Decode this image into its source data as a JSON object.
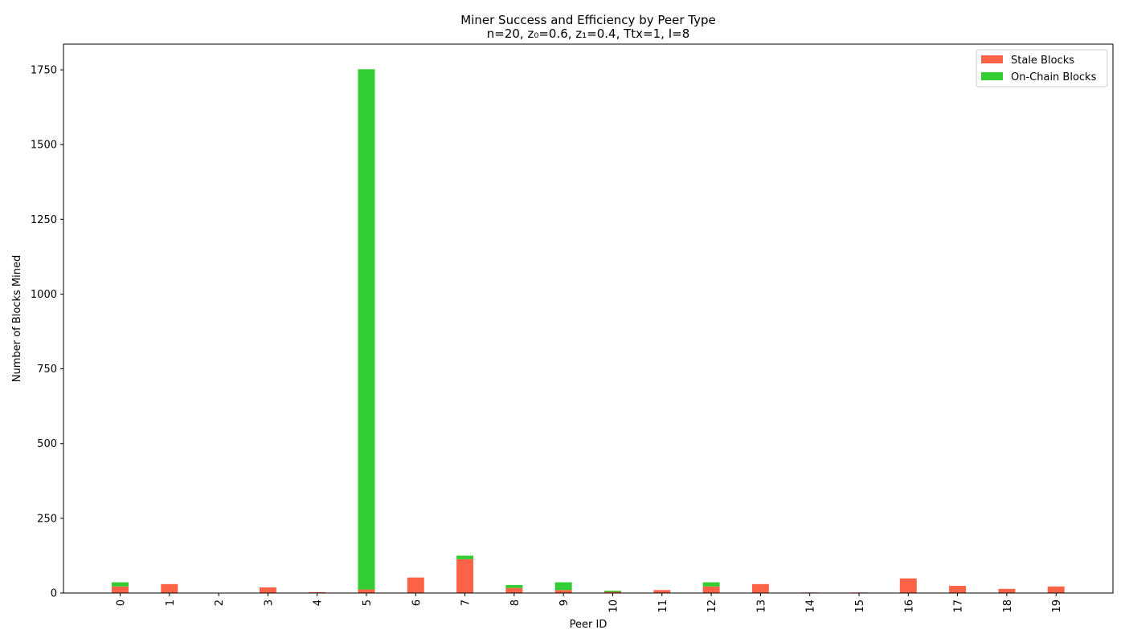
{
  "chart_data": {
    "type": "bar",
    "stacked": true,
    "title": "Miner Success and Efficiency by Peer Type",
    "subtitle": "n=20, z₀=0.6, z₁=0.4, Ttx=1, I=8",
    "xlabel": "Peer ID",
    "ylabel": "Number of Blocks Mined",
    "categories": [
      "0",
      "1",
      "2",
      "3",
      "4",
      "5",
      "6",
      "7",
      "8",
      "9",
      "10",
      "11",
      "12",
      "13",
      "14",
      "15",
      "16",
      "17",
      "18",
      "19"
    ],
    "series": [
      {
        "name": "Stale Blocks",
        "color": "#ff6347",
        "values": [
          22,
          30,
          0,
          19,
          3,
          12,
          52,
          113,
          17,
          10,
          4,
          10,
          22,
          30,
          2,
          2,
          49,
          24,
          14,
          22
        ]
      },
      {
        "name": "On-Chain Blocks",
        "color": "#32cd32",
        "values": [
          14,
          0,
          0,
          0,
          0,
          1740,
          0,
          12,
          10,
          26,
          4,
          0,
          14,
          0,
          0,
          0,
          0,
          0,
          0,
          0
        ]
      }
    ],
    "ylim": [
      0,
      1836
    ],
    "yticks": [
      0,
      250,
      500,
      750,
      1000,
      1250,
      1500,
      1750
    ],
    "legend_position": "top-right",
    "grid": false
  }
}
